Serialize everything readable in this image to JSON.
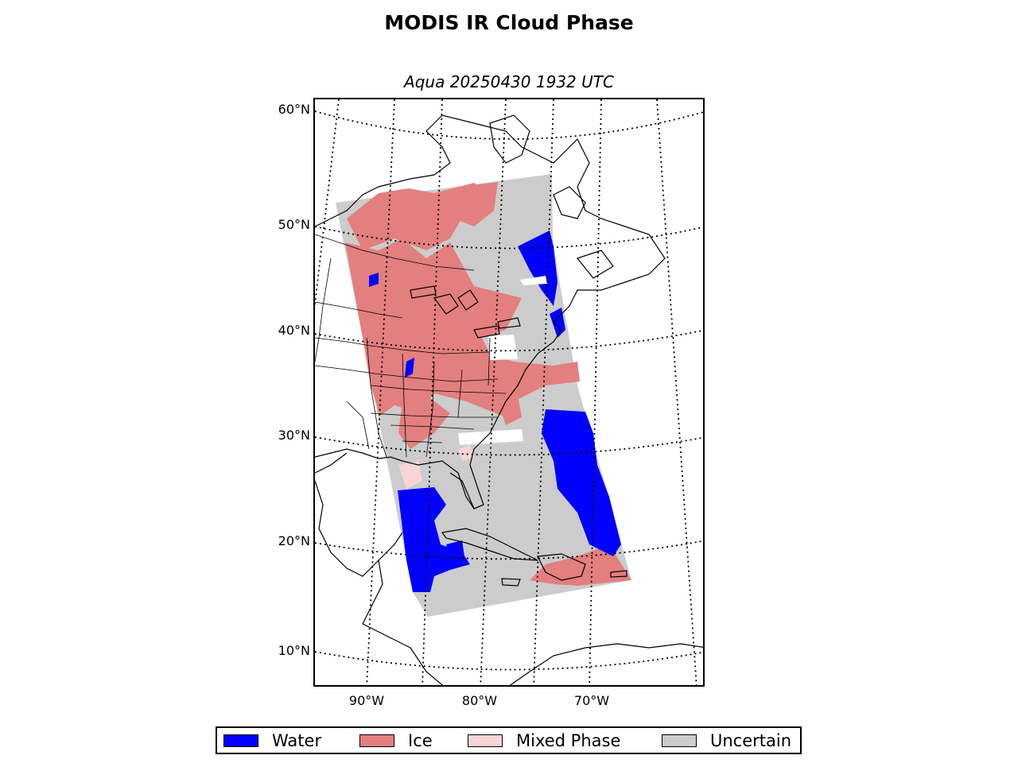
{
  "title": "MODIS IR Cloud Phase",
  "subtitle": "Aqua 20250430 1932 UTC",
  "axes": {
    "lat_labels": [
      "60°N",
      "50°N",
      "40°N",
      "30°N",
      "20°N",
      "10°N"
    ],
    "lon_labels": [
      "90°W",
      "80°W",
      "70°W"
    ]
  },
  "legend": [
    {
      "label": "Water",
      "color": "#0000ff"
    },
    {
      "label": "Ice",
      "color": "#e37f7f"
    },
    {
      "label": "Mixed Phase",
      "color": "#f8d5d5"
    },
    {
      "label": "Uncertain",
      "color": "#cccccc"
    }
  ],
  "colors": {
    "water": "#0000ff",
    "ice": "#e37f7f",
    "mixed": "#f8d5d5",
    "uncertain": "#cccccc",
    "coastline": "#000000",
    "gridline": "#000000"
  }
}
